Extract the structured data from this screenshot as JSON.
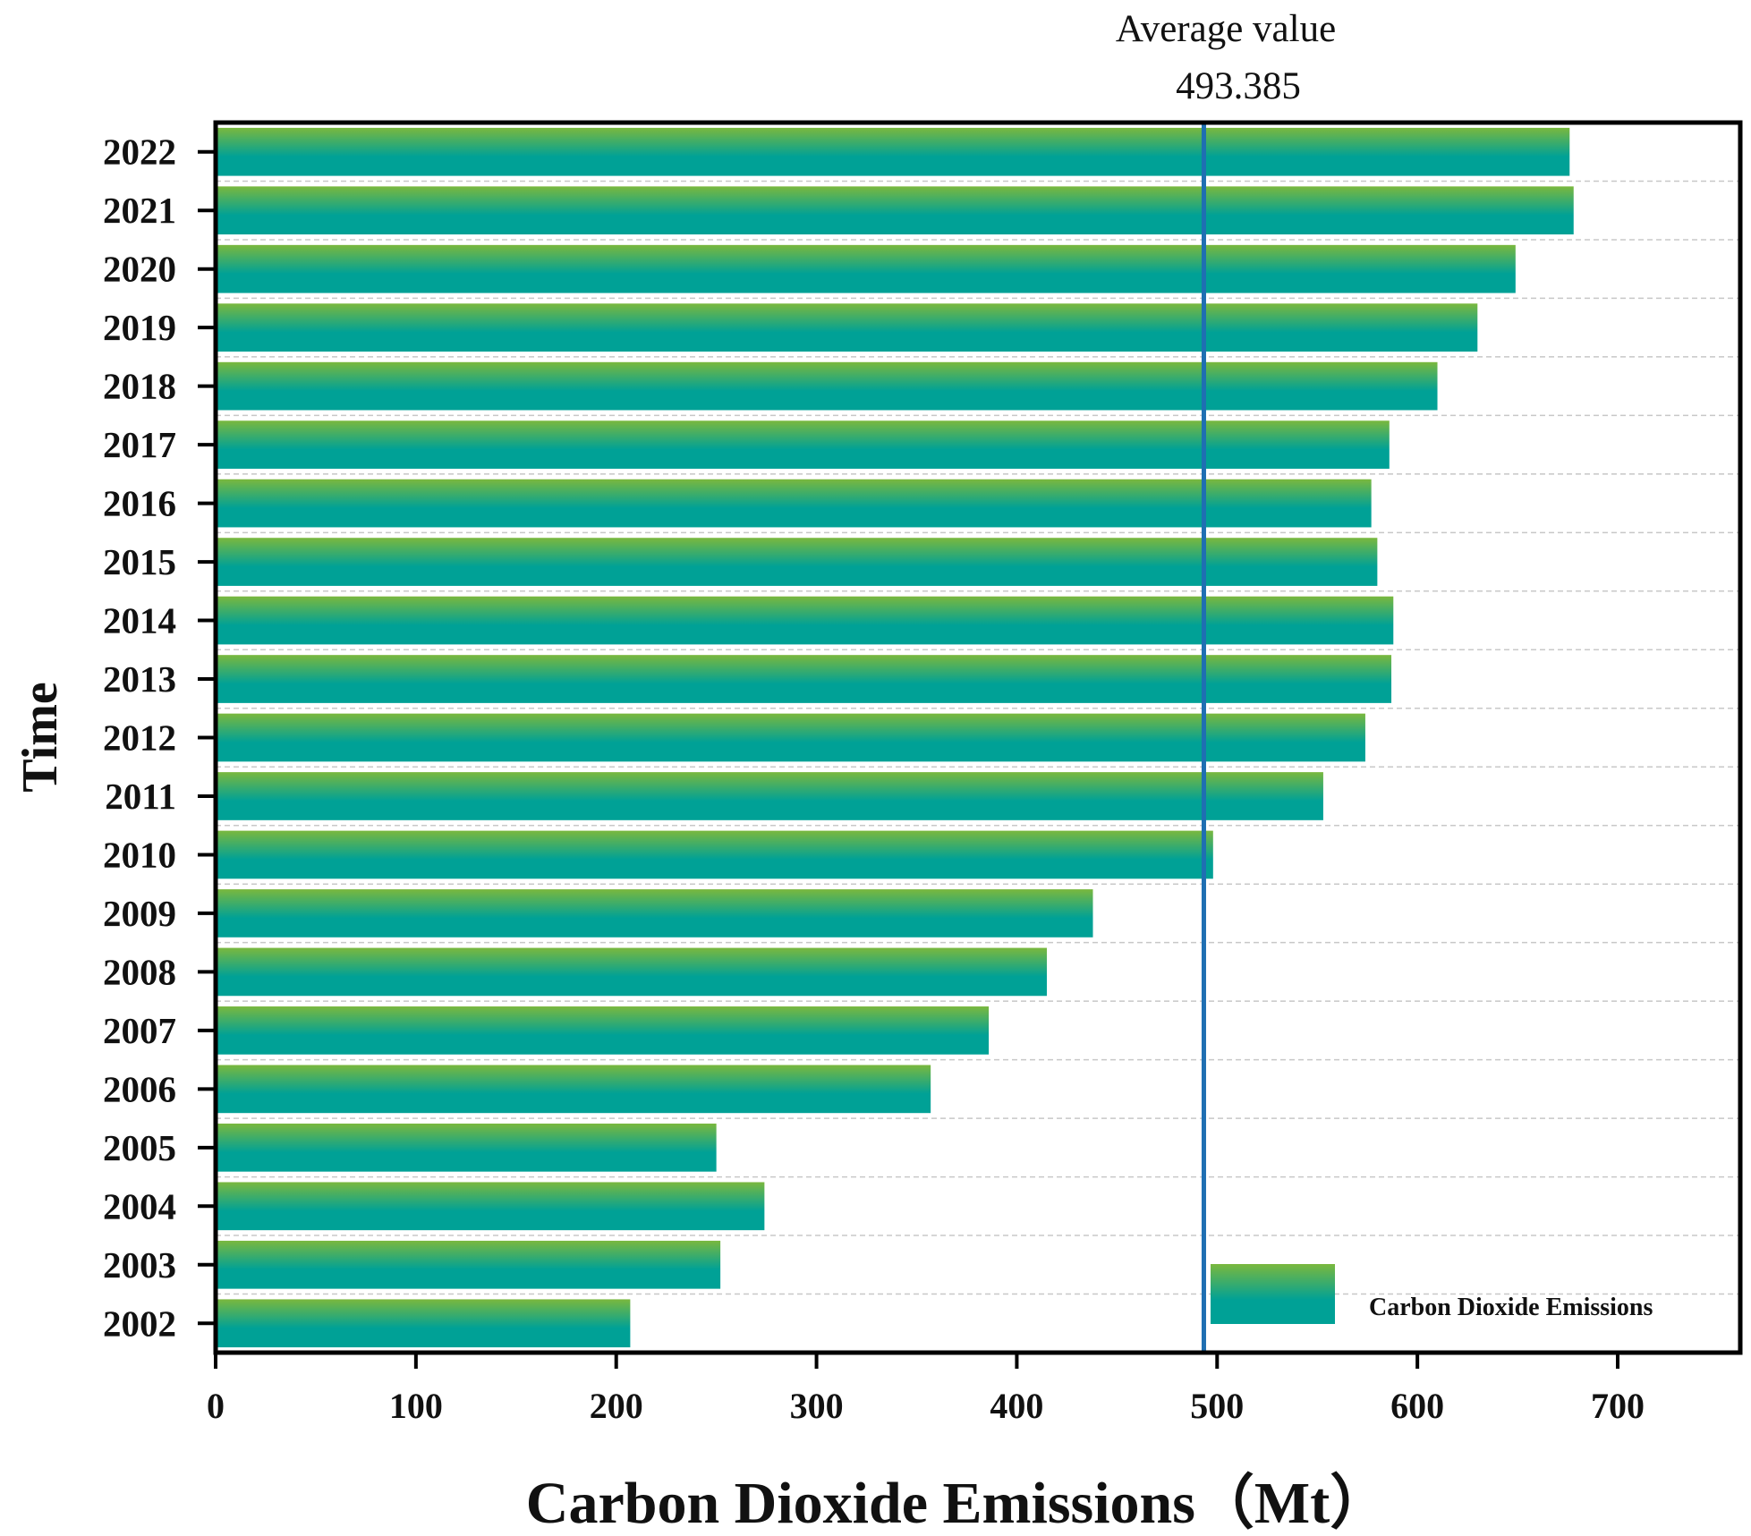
{
  "chart_data": {
    "type": "bar",
    "orientation": "horizontal",
    "categories": [
      "2022",
      "2021",
      "2020",
      "2019",
      "2018",
      "2017",
      "2016",
      "2015",
      "2014",
      "2013",
      "2012",
      "2011",
      "2010",
      "2009",
      "2008",
      "2007",
      "2006",
      "2005",
      "2004",
      "2003",
      "2002"
    ],
    "series": [
      {
        "name": "Carbon Dioxide Emissions",
        "values": [
          676,
          678,
          649,
          630,
          610,
          586,
          577,
          580,
          588,
          587,
          574,
          553,
          498,
          438,
          415,
          386,
          357,
          250,
          274,
          252,
          207
        ]
      }
    ],
    "xlabel": "Carbon Dioxide Emissions（Mt）",
    "ylabel": "Time",
    "xlim": [
      0,
      762
    ],
    "xticks": [
      "0",
      "100",
      "200",
      "300",
      "400",
      "500",
      "600",
      "700"
    ],
    "grid": "horizontal dashed",
    "legend": {
      "position": "bottom-right",
      "label": "Carbon Dioxide Emissions"
    },
    "reference_line": {
      "value": 493.385,
      "label_line1": "Average value",
      "label_line2": "493.385",
      "color": "#1f6fb2"
    },
    "colors": {
      "bar_top": "#7ab83e",
      "bar_bottom": "#00a196",
      "frame": "#000000",
      "grid": "#c8c8c8"
    }
  }
}
